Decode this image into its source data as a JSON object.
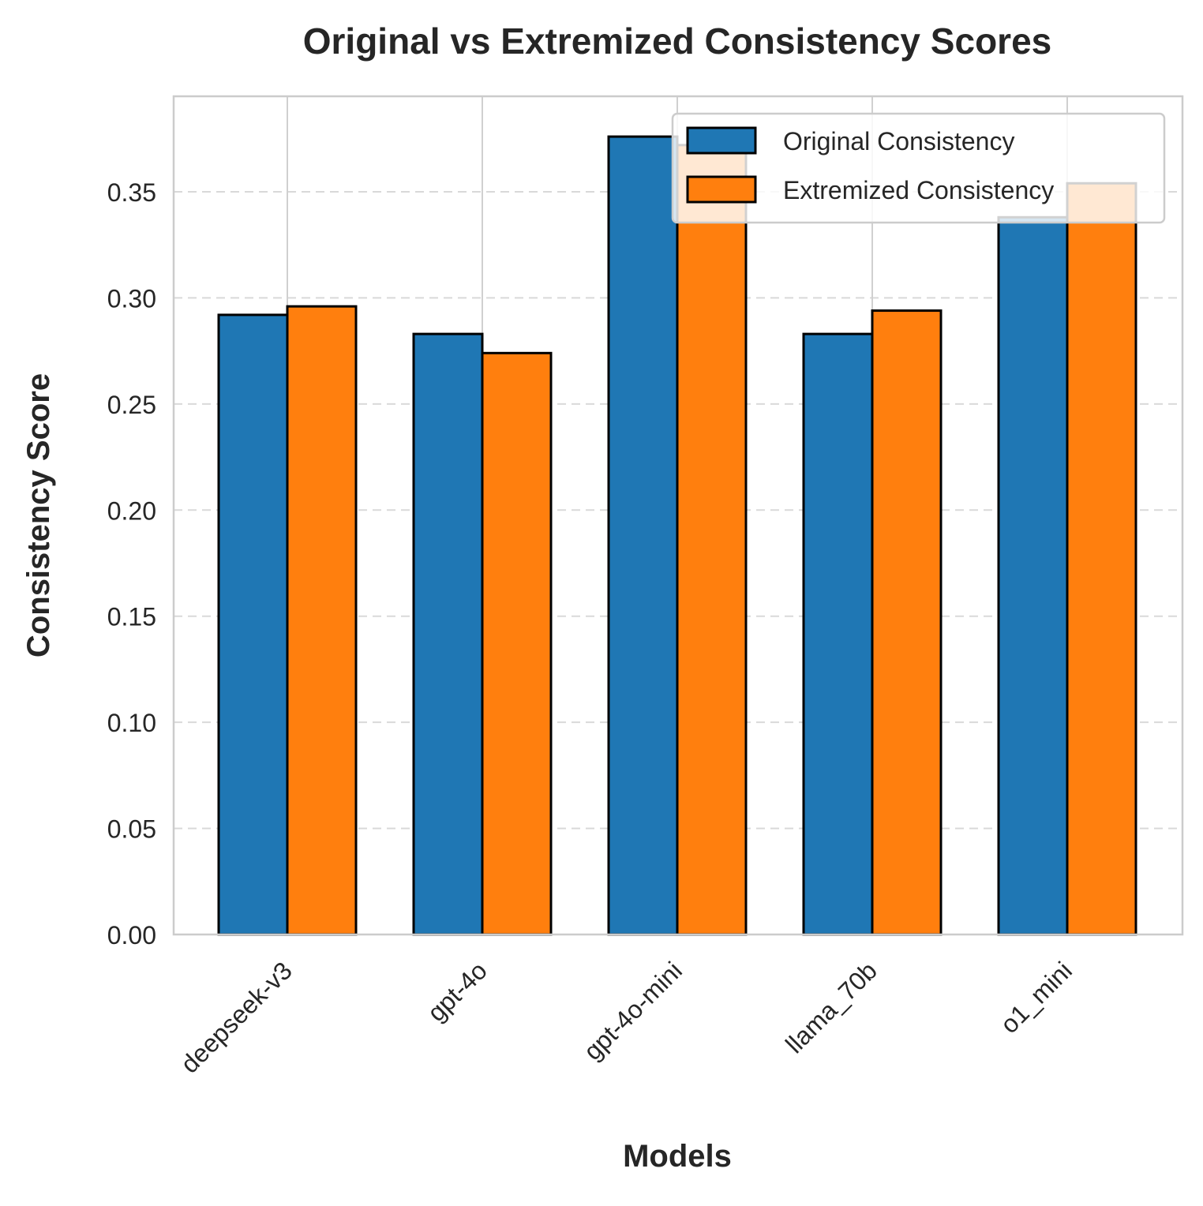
{
  "chart_data": {
    "type": "bar",
    "title": "Original vs Extremized Consistency Scores",
    "xlabel": "Models",
    "ylabel": "Consistency Score",
    "categories": [
      "deepseek-v3",
      "gpt-4o",
      "gpt-4o-mini",
      "llama_70b",
      "o1_mini"
    ],
    "series": [
      {
        "name": "Original Consistency",
        "color": "#1f77b4",
        "values": [
          0.292,
          0.283,
          0.376,
          0.283,
          0.338
        ]
      },
      {
        "name": "Extremized Consistency",
        "color": "#ff7f0e",
        "values": [
          0.296,
          0.274,
          0.372,
          0.294,
          0.354
        ]
      }
    ],
    "ylim": [
      0,
      0.395
    ],
    "yticks": [
      0.0,
      0.05,
      0.1,
      0.15,
      0.2,
      0.25,
      0.3,
      0.35
    ],
    "ytick_labels": [
      "0.00",
      "0.05",
      "0.10",
      "0.15",
      "0.20",
      "0.25",
      "0.30",
      "0.35"
    ],
    "grid": true,
    "legend_position": "top-right"
  }
}
